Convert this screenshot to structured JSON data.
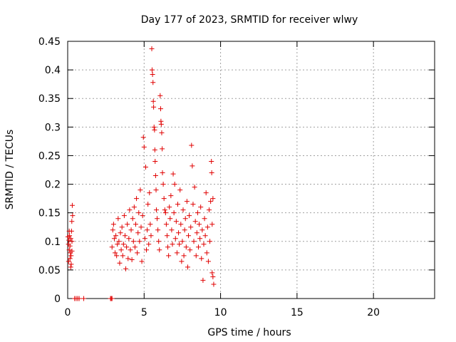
{
  "chart_data": {
    "type": "scatter",
    "title": "Day 177 of 2023, SRMTID for receiver wlwy",
    "xlabel": "GPS time / hours",
    "ylabel": "SRMTID / TECUs",
    "xlim": [
      0,
      24
    ],
    "ylim": [
      0,
      0.45
    ],
    "xticks": [
      0,
      5,
      10,
      15,
      20
    ],
    "yticks": [
      0,
      0.05,
      0.1,
      0.15,
      0.2,
      0.25,
      0.3,
      0.35,
      0.4,
      0.45
    ],
    "xtick_labels": [
      "0",
      "5",
      "10",
      "15",
      "20"
    ],
    "ytick_labels": [
      "0",
      "0.05",
      "0.1",
      "0.15",
      "0.2",
      "0.25",
      "0.3",
      "0.35",
      "0.4",
      "0.45"
    ],
    "grid": true,
    "marker": "+",
    "color": "#e00000",
    "series": [
      {
        "points": [
          [
            0.02,
            0.108
          ],
          [
            0.05,
            0.095
          ],
          [
            0.08,
            0.102
          ],
          [
            0.1,
            0.085
          ],
          [
            0.12,
            0.11
          ],
          [
            0.15,
            0.092
          ],
          [
            0.18,
            0.08
          ],
          [
            0.2,
            0.105
          ],
          [
            0.22,
            0.075
          ],
          [
            0.25,
            0.118
          ],
          [
            0.28,
            0.1
          ],
          [
            0.3,
            0.163
          ],
          [
            0.32,
            0.145
          ],
          [
            0.27,
            0.135
          ],
          [
            0.23,
            0.06
          ],
          [
            0.2,
            0.055
          ],
          [
            0.15,
            0.07
          ],
          [
            0.1,
            0.118
          ],
          [
            0.06,
            0.065
          ],
          [
            0.28,
            0.083
          ],
          [
            0.45,
            0
          ],
          [
            0.55,
            0
          ],
          [
            0.65,
            0
          ],
          [
            0.75,
            0
          ],
          [
            1.05,
            0
          ],
          [
            2.8,
            0
          ],
          [
            2.85,
            0
          ],
          [
            2.9,
            0
          ],
          [
            2.9,
            0.09
          ],
          [
            2.95,
            0.12
          ],
          [
            3.0,
            0.13
          ],
          [
            3.05,
            0.105
          ],
          [
            3.1,
            0.08
          ],
          [
            3.15,
            0.11
          ],
          [
            3.2,
            0.075
          ],
          [
            3.25,
            0.095
          ],
          [
            3.3,
            0.14
          ],
          [
            3.35,
            0.1
          ],
          [
            3.4,
            0.062
          ],
          [
            3.45,
            0.115
          ],
          [
            3.5,
            0.085
          ],
          [
            3.55,
            0.125
          ],
          [
            3.6,
            0.075
          ],
          [
            3.65,
            0.095
          ],
          [
            3.7,
            0.145
          ],
          [
            3.75,
            0.11
          ],
          [
            3.8,
            0.052
          ],
          [
            3.85,
            0.09
          ],
          [
            3.9,
            0.13
          ],
          [
            3.95,
            0.07
          ],
          [
            4.0,
            0.105
          ],
          [
            4.05,
            0.155
          ],
          [
            4.1,
            0.085
          ],
          [
            4.15,
            0.12
          ],
          [
            4.2,
            0.068
          ],
          [
            4.25,
            0.14
          ],
          [
            4.3,
            0.1
          ],
          [
            4.35,
            0.16
          ],
          [
            4.4,
            0.09
          ],
          [
            4.45,
            0.13
          ],
          [
            4.5,
            0.175
          ],
          [
            4.55,
            0.08
          ],
          [
            4.6,
            0.115
          ],
          [
            4.65,
            0.15
          ],
          [
            4.7,
            0.1
          ],
          [
            4.75,
            0.19
          ],
          [
            4.8,
            0.125
          ],
          [
            4.85,
            0.065
          ],
          [
            4.9,
            0.145
          ],
          [
            4.95,
            0.282
          ],
          [
            5.0,
            0.265
          ],
          [
            5.05,
            0.105
          ],
          [
            5.1,
            0.23
          ],
          [
            5.15,
            0.085
          ],
          [
            5.2,
            0.12
          ],
          [
            5.25,
            0.165
          ],
          [
            5.3,
            0.095
          ],
          [
            5.35,
            0.185
          ],
          [
            5.4,
            0.13
          ],
          [
            5.45,
            0.11
          ],
          [
            5.5,
            0.437
          ],
          [
            5.52,
            0.4
          ],
          [
            5.55,
            0.392
          ],
          [
            5.58,
            0.378
          ],
          [
            5.6,
            0.345
          ],
          [
            5.62,
            0.335
          ],
          [
            5.65,
            0.3
          ],
          [
            5.68,
            0.295
          ],
          [
            5.7,
            0.26
          ],
          [
            5.72,
            0.24
          ],
          [
            5.75,
            0.215
          ],
          [
            5.78,
            0.19
          ],
          [
            5.8,
            0.155
          ],
          [
            5.85,
            0.14
          ],
          [
            5.9,
            0.12
          ],
          [
            5.95,
            0.1
          ],
          [
            6.0,
            0.085
          ],
          [
            6.05,
            0.355
          ],
          [
            6.08,
            0.332
          ],
          [
            6.1,
            0.31
          ],
          [
            6.12,
            0.305
          ],
          [
            6.15,
            0.29
          ],
          [
            6.18,
            0.262
          ],
          [
            6.2,
            0.22
          ],
          [
            6.25,
            0.2
          ],
          [
            6.3,
            0.175
          ],
          [
            6.35,
            0.155
          ],
          [
            6.4,
            0.15
          ],
          [
            6.45,
            0.13
          ],
          [
            6.5,
            0.11
          ],
          [
            6.55,
            0.09
          ],
          [
            6.6,
            0.075
          ],
          [
            6.65,
            0.16
          ],
          [
            6.7,
            0.14
          ],
          [
            6.75,
            0.18
          ],
          [
            6.8,
            0.12
          ],
          [
            6.85,
            0.095
          ],
          [
            6.9,
            0.218
          ],
          [
            6.95,
            0.15
          ],
          [
            7.0,
            0.2
          ],
          [
            7.05,
            0.105
          ],
          [
            7.1,
            0.135
          ],
          [
            7.15,
            0.08
          ],
          [
            7.2,
            0.165
          ],
          [
            7.25,
            0.115
          ],
          [
            7.3,
            0.095
          ],
          [
            7.35,
            0.19
          ],
          [
            7.4,
            0.13
          ],
          [
            7.45,
            0.065
          ],
          [
            7.5,
            0.1
          ],
          [
            7.55,
            0.155
          ],
          [
            7.6,
            0.075
          ],
          [
            7.65,
            0.12
          ],
          [
            7.7,
            0.14
          ],
          [
            7.75,
            0.09
          ],
          [
            7.8,
            0.17
          ],
          [
            7.85,
            0.055
          ],
          [
            7.9,
            0.11
          ],
          [
            7.95,
            0.145
          ],
          [
            8.0,
            0.085
          ],
          [
            8.05,
            0.125
          ],
          [
            8.1,
            0.268
          ],
          [
            8.15,
            0.232
          ],
          [
            8.2,
            0.165
          ],
          [
            8.25,
            0.1
          ],
          [
            8.3,
            0.195
          ],
          [
            8.35,
            0.135
          ],
          [
            8.4,
            0.075
          ],
          [
            8.45,
            0.115
          ],
          [
            8.5,
            0.15
          ],
          [
            8.55,
            0.09
          ],
          [
            8.6,
            0.13
          ],
          [
            8.65,
            0.105
          ],
          [
            8.7,
            0.16
          ],
          [
            8.75,
            0.07
          ],
          [
            8.8,
            0.12
          ],
          [
            8.85,
            0.032
          ],
          [
            8.9,
            0.095
          ],
          [
            8.95,
            0.14
          ],
          [
            9.0,
            0.11
          ],
          [
            9.05,
            0.185
          ],
          [
            9.1,
            0.08
          ],
          [
            9.15,
            0.125
          ],
          [
            9.2,
            0.065
          ],
          [
            9.25,
            0.155
          ],
          [
            9.3,
            0.1
          ],
          [
            9.35,
            0.17
          ],
          [
            9.4,
            0.24
          ],
          [
            9.42,
            0.22
          ],
          [
            9.45,
            0.045
          ],
          [
            9.5,
            0.038
          ],
          [
            9.55,
            0.025
          ],
          [
            9.5,
            0.175
          ],
          [
            9.45,
            0.13
          ]
        ]
      }
    ]
  }
}
